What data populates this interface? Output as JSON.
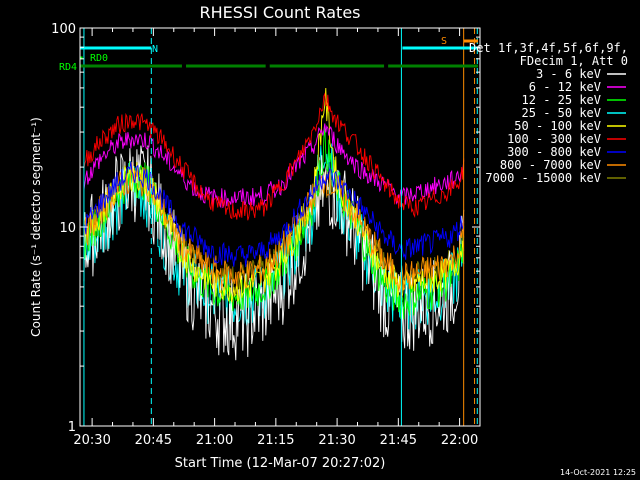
{
  "chart_data": {
    "type": "line",
    "title": "RHESSI Count Rates",
    "xlabel": "Start Time (12-Mar-07 20:27:02)",
    "ylabel": "Count Rate (s⁻¹ detector segment⁻¹)",
    "yscale": "log",
    "ylim": [
      1,
      100
    ],
    "xlim": [
      "20:27:02",
      "22:05:00"
    ],
    "x_ticks": [
      "20:30",
      "20:45",
      "21:00",
      "21:15",
      "21:30",
      "21:45",
      "22:00"
    ],
    "y_ticks": [
      "1",
      "10",
      "100"
    ],
    "timestamp": "14-Oct-2021 12:25",
    "legend_header": [
      "Det 1f,3f,4f,5f,6f,9f,",
      "FDecim 1, Att 0"
    ],
    "legend_position": "right",
    "x_points": [
      "20:28",
      "20:32",
      "20:36",
      "20:40",
      "20:44",
      "20:48",
      "20:52",
      "20:56",
      "21:00",
      "21:04",
      "21:08",
      "21:12",
      "21:16",
      "21:20",
      "21:24",
      "21:27",
      "21:30",
      "21:34",
      "21:38",
      "21:42",
      "21:46",
      "21:50",
      "21:54",
      "21:58",
      "22:00",
      "22:01"
    ],
    "series": [
      {
        "name": "3 - 6 keV",
        "color": "#ffffff",
        "values": [
          8,
          10.5,
          14.5,
          17.5,
          15.5,
          9.5,
          6,
          4.5,
          3.8,
          3.5,
          3.6,
          4,
          5,
          7,
          11,
          16,
          15,
          10,
          6.5,
          4.2,
          3.6,
          4,
          4.2,
          4.8,
          6,
          8
        ]
      },
      {
        "name": "6 - 12 keV",
        "color": "#ff00ff",
        "values": [
          17,
          22,
          26,
          28,
          27,
          22,
          18,
          15,
          14,
          14,
          14,
          14.5,
          16,
          20,
          25,
          32,
          26,
          21,
          18,
          16,
          14,
          15,
          16,
          17,
          18.5,
          20
        ]
      },
      {
        "name": "12 - 25 keV",
        "color": "#00ff00",
        "values": [
          8.5,
          11,
          15,
          18,
          16.5,
          10.5,
          7,
          5.5,
          4.8,
          4.5,
          4.6,
          5,
          6.2,
          8.5,
          13,
          26,
          16,
          11,
          7.2,
          5,
          4.2,
          4.6,
          4.8,
          5.5,
          6.5,
          8.5
        ]
      },
      {
        "name": "25 - 50 keV",
        "color": "#00ffff",
        "values": [
          7.5,
          9.5,
          13,
          16.5,
          14,
          8.5,
          6,
          5,
          4.5,
          4.3,
          4.4,
          4.7,
          5.8,
          8,
          12,
          28,
          14,
          10,
          6.8,
          4.8,
          4.1,
          4.4,
          4.6,
          5.2,
          6.2,
          8
        ]
      },
      {
        "name": "50 - 100 keV",
        "color": "#ffff00",
        "values": [
          9,
          11.5,
          15.5,
          18.5,
          16.5,
          11,
          7.5,
          6,
          5.2,
          5,
          5,
          5.5,
          6.8,
          9.2,
          14,
          45,
          17,
          12,
          8,
          5.8,
          5,
          5.3,
          5.5,
          6,
          7,
          9
        ]
      },
      {
        "name": "100 - 300 keV",
        "color": "#ff0000",
        "values": [
          21,
          27,
          32,
          35,
          32,
          26,
          20,
          15.5,
          13,
          12,
          12,
          12.5,
          16,
          21,
          30,
          45,
          34,
          27,
          21,
          16,
          13,
          12.5,
          14,
          15.5,
          17,
          20
        ]
      },
      {
        "name": "300 - 800 keV",
        "color": "#0000ff",
        "values": [
          10,
          13,
          16.5,
          19,
          17.5,
          13,
          10,
          8.5,
          7.5,
          7.2,
          7.2,
          7.6,
          9,
          11.5,
          15,
          18.5,
          17,
          14,
          11,
          8.8,
          7.6,
          8,
          8.4,
          9,
          10,
          11
        ]
      },
      {
        "name": "800 - 7000 keV",
        "color": "#ff8c00",
        "values": [
          9,
          12,
          15.5,
          18,
          16,
          11.5,
          8.2,
          6.8,
          6,
          5.7,
          5.8,
          6.2,
          7.5,
          10,
          14,
          17.5,
          15.5,
          12,
          8.8,
          6.5,
          5.5,
          5.9,
          6.2,
          6.8,
          7.8,
          9.5
        ]
      },
      {
        "name": "7000 - 15000 keV",
        "color": "#808000",
        "values": [
          9.5,
          12,
          15.5,
          17.5,
          15.5,
          11,
          8,
          6.5,
          5.8,
          5.5,
          5.6,
          6,
          7.2,
          9.5,
          13.5,
          17,
          15,
          11.5,
          8.4,
          6.2,
          5.3,
          5.7,
          6,
          6.6,
          7.5,
          9.2
        ]
      }
    ],
    "state_bars": [
      {
        "label": "N",
        "color": "#00ffff",
        "segments": [
          [
            "20:27:02",
            "20:44:30"
          ]
        ]
      },
      {
        "label": "RD0",
        "color": "#00ff00",
        "segments": [
          [
            "20:27:02",
            "20:27:40"
          ]
        ]
      },
      {
        "label": "RD4",
        "color": "#008000",
        "segments": [
          [
            "20:27:02",
            "20:52:00"
          ],
          [
            "20:53:00",
            "21:12:30"
          ],
          [
            "21:13:30",
            "21:41:30"
          ],
          [
            "21:42:30",
            "22:04:30"
          ]
        ]
      },
      {
        "label": "S",
        "color": "#ff8c00",
        "segments": [
          [
            "22:01:00",
            "22:04:30"
          ]
        ]
      },
      {
        "label": "",
        "color": "#00ffff",
        "segments": [
          [
            "21:46:00",
            "22:04:30"
          ]
        ]
      }
    ],
    "vlines": [
      {
        "time": "20:28:00",
        "color": "#00ffff",
        "style": "solid"
      },
      {
        "time": "20:44:30",
        "color": "#00ffff",
        "style": "dashed"
      },
      {
        "time": "21:45:45",
        "color": "#00ffff",
        "style": "solid"
      },
      {
        "time": "22:01:00",
        "color": "#ff8c00",
        "style": "solid"
      },
      {
        "time": "22:03:40",
        "color": "#ff8c00",
        "style": "dashed"
      },
      {
        "time": "22:04:20",
        "color": "#00ffff",
        "style": "dashed"
      }
    ]
  }
}
